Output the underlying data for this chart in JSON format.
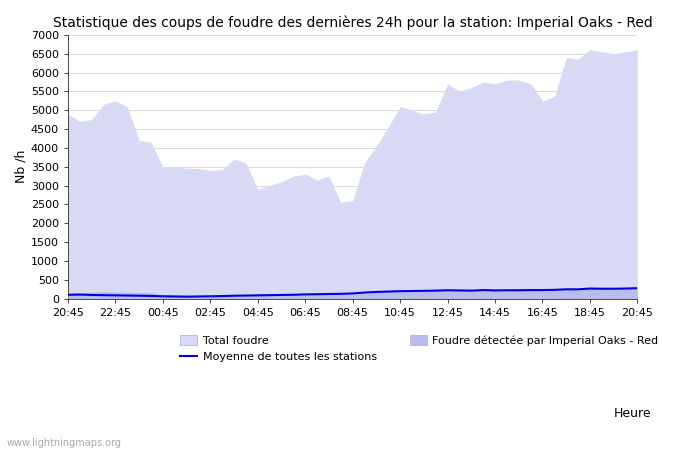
{
  "title": "Statistique des coups de foudre des dernières 24h pour la station: Imperial Oaks - Red",
  "xlabel": "Heure",
  "ylabel": "Nb /h",
  "ylim": [
    0,
    7000
  ],
  "yticks": [
    0,
    500,
    1000,
    1500,
    2000,
    2500,
    3000,
    3500,
    4000,
    4500,
    5000,
    5500,
    6000,
    6500,
    7000
  ],
  "xtick_labels": [
    "20:45",
    "22:45",
    "00:45",
    "02:45",
    "04:45",
    "06:45",
    "08:45",
    "10:45",
    "12:45",
    "14:45",
    "16:45",
    "18:45",
    "20:45"
  ],
  "bg_color": "#ffffff",
  "fill_total_color": "#d8daf5",
  "fill_station_color": "#b8bcee",
  "line_moyenne_color": "#0000dd",
  "watermark": "www.lightningmaps.org",
  "x": [
    0,
    1,
    2,
    3,
    4,
    5,
    6,
    7,
    8,
    9,
    10,
    11,
    12,
    13,
    14,
    15,
    16,
    17,
    18,
    19,
    20,
    21,
    22,
    23,
    24,
    25,
    26,
    27,
    28,
    29,
    30,
    31,
    32,
    33,
    34,
    35,
    36,
    37,
    38,
    39,
    40,
    41,
    42,
    43,
    44,
    45,
    46,
    47,
    48
  ],
  "total_foudre": [
    4900,
    4700,
    4750,
    5150,
    5250,
    5100,
    4200,
    4150,
    3500,
    3500,
    3460,
    3450,
    3400,
    3420,
    3700,
    3600,
    2900,
    3000,
    3100,
    3250,
    3300,
    3150,
    3250,
    2550,
    2600,
    3600,
    4050,
    4550,
    5100,
    5000,
    4900,
    4950,
    5700,
    5500,
    5600,
    5750,
    5700,
    5800,
    5800,
    5700,
    5250,
    5350,
    6400,
    6350,
    6600,
    6550,
    6500,
    6550,
    6600
  ],
  "station_foudre": [
    150,
    160,
    170,
    185,
    175,
    170,
    160,
    155,
    100,
    95,
    90,
    90,
    85,
    85,
    100,
    105,
    80,
    90,
    95,
    105,
    110,
    110,
    115,
    110,
    130,
    160,
    175,
    190,
    200,
    205,
    210,
    215,
    235,
    230,
    225,
    245,
    235,
    240,
    240,
    245,
    245,
    250,
    265,
    265,
    285,
    280,
    280,
    285,
    295
  ],
  "moyenne": [
    100,
    105,
    95,
    90,
    85,
    80,
    75,
    70,
    60,
    55,
    50,
    55,
    60,
    65,
    75,
    80,
    85,
    90,
    95,
    100,
    110,
    115,
    120,
    125,
    135,
    160,
    175,
    185,
    195,
    200,
    205,
    210,
    220,
    215,
    210,
    225,
    215,
    220,
    220,
    225,
    225,
    230,
    245,
    245,
    265,
    260,
    260,
    265,
    275
  ]
}
